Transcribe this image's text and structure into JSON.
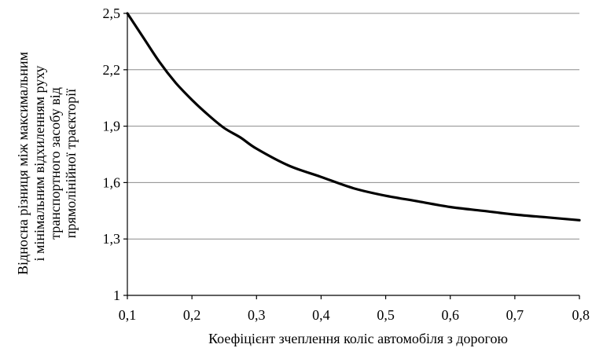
{
  "chart_data": {
    "type": "line",
    "title": "",
    "xlabel": "Коефіцієнт зчеплення коліс автомобіля з дорогою",
    "ylabel_lines": [
      "Відносна різниця між максимальним",
      "і мінімальним відхиленням руху",
      "транспортного засобу від",
      "прямолінійної траєкторії"
    ],
    "xlim": [
      0.1,
      0.8
    ],
    "ylim": [
      1.0,
      2.5
    ],
    "x_ticks": [
      0.1,
      0.2,
      0.3,
      0.4,
      0.5,
      0.6,
      0.7,
      0.8
    ],
    "x_tick_labels": [
      "0,1",
      "0,2",
      "0,3",
      "0,4",
      "0,5",
      "0,6",
      "0,7",
      "0,8"
    ],
    "y_ticks": [
      1.0,
      1.3,
      1.6,
      1.9,
      2.2,
      2.5
    ],
    "y_tick_labels": [
      "1",
      "1,3",
      "1,6",
      "1,9",
      "2,2",
      "2,5"
    ],
    "grid": "horizontal",
    "legend": "none",
    "series": [
      {
        "color": "#000000",
        "x": [
          0.1,
          0.125,
          0.15,
          0.175,
          0.2,
          0.225,
          0.25,
          0.275,
          0.3,
          0.35,
          0.4,
          0.45,
          0.5,
          0.55,
          0.6,
          0.65,
          0.7,
          0.75,
          0.8
        ],
        "y": [
          2.5,
          2.37,
          2.24,
          2.13,
          2.04,
          1.96,
          1.89,
          1.84,
          1.78,
          1.69,
          1.63,
          1.57,
          1.53,
          1.5,
          1.47,
          1.45,
          1.43,
          1.415,
          1.4
        ]
      }
    ]
  }
}
